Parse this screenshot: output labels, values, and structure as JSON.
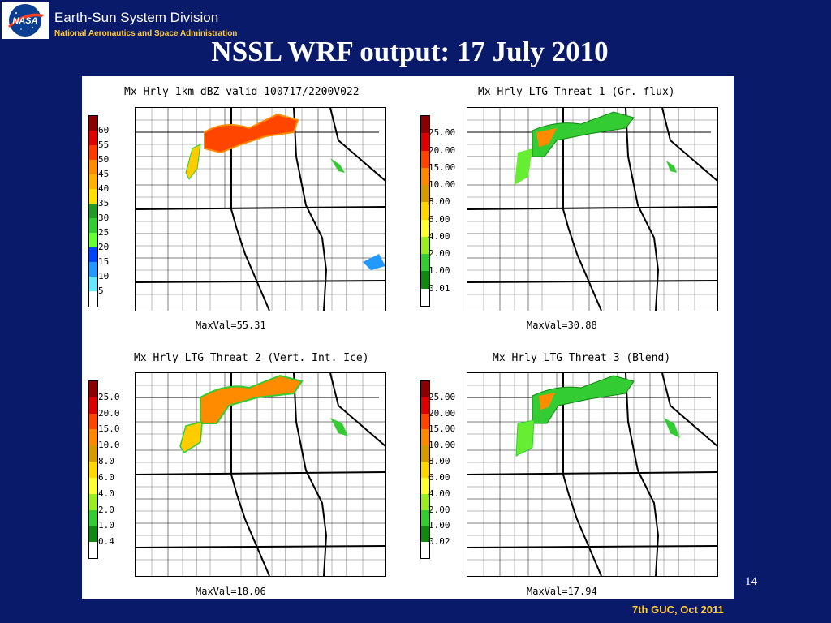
{
  "header": {
    "org_name": "Earth-Sun System Division",
    "org_sub": "National Aeronautics and Space Administration",
    "logo_text": "NASA"
  },
  "slide": {
    "title": "NSSL WRF output: 17 July 2010",
    "page_number": "14",
    "footer": "7th GUC, Oct 2011"
  },
  "panels": [
    {
      "title": "Mx Hrly 1km dBZ valid 100717/2200V022",
      "maxval": "MaxVal=55.31",
      "ticks": [
        "60",
        "55",
        "50",
        "45",
        "40",
        "35",
        "30",
        "25",
        "20",
        "15",
        "10",
        "5"
      ],
      "colors": [
        "#8b0000",
        "#e00000",
        "#ff3b00",
        "#ff8c00",
        "#ffb000",
        "#ffe000",
        "#229922",
        "#33cc33",
        "#66ff33",
        "#0044ff",
        "#2299ff",
        "#66e6ff",
        "#ffffff"
      ]
    },
    {
      "title": "Mx Hrly LTG Threat 1 (Gr. flux)",
      "maxval": "MaxVal=30.88",
      "ticks": [
        "25.00",
        "20.00",
        "15.00",
        "10.00",
        "8.00",
        "6.00",
        "4.00",
        "2.00",
        "1.00",
        "0.01"
      ],
      "colors": [
        "#8b0000",
        "#dd0000",
        "#ff4400",
        "#ff8800",
        "#d49a00",
        "#ffd700",
        "#ffff33",
        "#99ee22",
        "#33cc33",
        "#118811",
        "#ffffff"
      ]
    },
    {
      "title": "Mx Hrly LTG Threat 2 (Vert. Int. Ice)",
      "maxval": "MaxVal=18.06",
      "ticks": [
        "25.0",
        "20.0",
        "15.0",
        "10.0",
        "8.0",
        "6.0",
        "4.0",
        "2.0",
        "1.0",
        "0.4"
      ],
      "colors": [
        "#8b0000",
        "#dd0000",
        "#ff4400",
        "#ff8800",
        "#d49a00",
        "#ffd700",
        "#ffff33",
        "#99ee22",
        "#33cc33",
        "#118811",
        "#ffffff"
      ]
    },
    {
      "title": "Mx Hrly LTG Threat 3 (Blend)",
      "maxval": "MaxVal=17.94",
      "ticks": [
        "25.00",
        "20.00",
        "15.00",
        "10.00",
        "8.00",
        "6.00",
        "4.00",
        "2.00",
        "1.00",
        "0.02"
      ],
      "colors": [
        "#8b0000",
        "#dd0000",
        "#ff4400",
        "#ff8800",
        "#d49a00",
        "#ffd700",
        "#ffff33",
        "#99ee22",
        "#33cc33",
        "#118811",
        "#ffffff"
      ]
    }
  ]
}
